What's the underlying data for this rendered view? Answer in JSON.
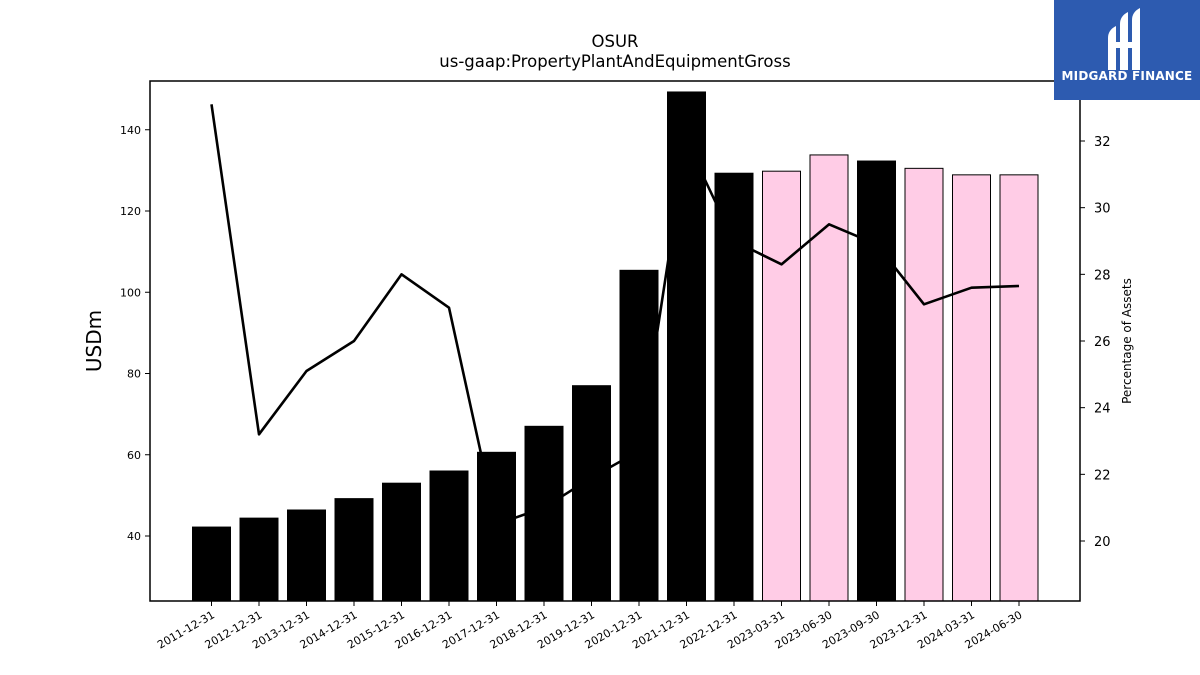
{
  "chart_data": {
    "type": "bar",
    "title": "OSUR",
    "subtitle": "us-gaap:PropertyPlantAndEquipmentGross",
    "ylabel": "USDm",
    "y2label": "Percentage of Assets",
    "ylim": [
      24,
      152
    ],
    "y2lim": [
      18.2,
      33.8
    ],
    "yticks": [
      40,
      60,
      80,
      100,
      120,
      140
    ],
    "y2ticks": [
      20,
      22,
      24,
      26,
      28,
      30,
      32
    ],
    "categories": [
      "2011-12-31",
      "2012-12-31",
      "2013-12-31",
      "2014-12-31",
      "2015-12-31",
      "2016-12-31",
      "2017-12-31",
      "2018-12-31",
      "2019-12-31",
      "2020-12-31",
      "2021-12-31",
      "2022-12-31",
      "2023-03-31",
      "2023-06-30",
      "2023-09-30",
      "2023-12-31",
      "2024-03-31",
      "2024-06-30"
    ],
    "series": [
      {
        "axis": "left",
        "kind": "bar",
        "values": [
          42.2,
          44.4,
          46.4,
          49.2,
          53.0,
          56.0,
          60.6,
          67.0,
          77.0,
          105.4,
          149.3,
          129.3,
          129.8,
          133.8,
          132.3,
          130.5,
          128.9,
          128.9
        ],
        "quarterly_flag": [
          false,
          false,
          false,
          false,
          false,
          false,
          false,
          false,
          false,
          false,
          false,
          false,
          true,
          true,
          false,
          true,
          true,
          true
        ],
        "colors": {
          "annual": "#000000",
          "quarterly": "#ffcce6"
        }
      },
      {
        "axis": "right",
        "kind": "line",
        "color": "#000000",
        "values": [
          33.1,
          23.2,
          25.1,
          26.0,
          28.0,
          27.0,
          20.5,
          21.0,
          21.9,
          22.7,
          32.0,
          29.0,
          28.3,
          29.5,
          28.9,
          27.1,
          27.6,
          27.65
        ]
      }
    ]
  },
  "logo": {
    "text": "MIDGARD FINANCE",
    "bg": "#2d5bb0"
  }
}
